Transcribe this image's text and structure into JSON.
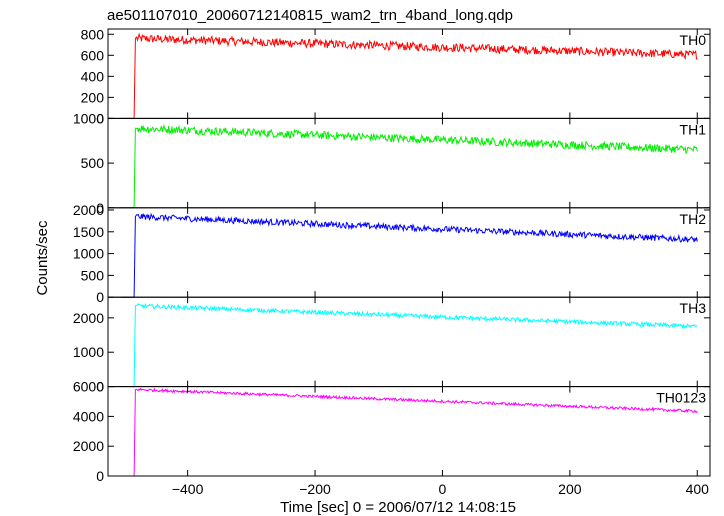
{
  "chart_data": {
    "type": "line",
    "title": "ae501107010_20060712140815_wam2_trn_4band_long.qdp",
    "xlabel": "Time [sec] 0 = 2006/07/12 14:08:15",
    "ylabel": "Counts/sec",
    "xlim": [
      -525,
      420
    ],
    "x_ticks": [
      -400,
      -200,
      0,
      200,
      400
    ],
    "x_tick_labels": [
      "−400",
      "−200",
      "0",
      "200",
      "400"
    ],
    "panels": [
      {
        "name": "TH0",
        "color": "#ff0000",
        "ylim": [
          0,
          850
        ],
        "y_ticks": [
          0,
          200,
          400,
          600,
          800
        ],
        "y_tick_labels": [
          "0",
          "200",
          "400",
          "600",
          "800"
        ],
        "pre_level": 0,
        "step_x": -478,
        "start_level": 760,
        "end_level": 605,
        "noise": 40,
        "x_end": 400
      },
      {
        "name": "TH1",
        "color": "#00ee00",
        "ylim": [
          0,
          1000
        ],
        "y_ticks": [
          0,
          500,
          1000
        ],
        "y_tick_labels": [
          "0",
          "500",
          "1000"
        ],
        "pre_level": 0,
        "step_x": -478,
        "start_level": 890,
        "end_level": 650,
        "noise": 45,
        "x_end": 400
      },
      {
        "name": "TH2",
        "color": "#0000ff",
        "ylim": [
          0,
          2050
        ],
        "y_ticks": [
          0,
          500,
          1000,
          1500,
          2000
        ],
        "y_tick_labels": [
          "0",
          "500",
          "1000",
          "1500",
          "2000"
        ],
        "pre_level": 0,
        "step_x": -478,
        "start_level": 1850,
        "end_level": 1320,
        "noise": 70,
        "x_end": 400
      },
      {
        "name": "TH3",
        "color": "#00ffff",
        "ylim": [
          0,
          2600
        ],
        "y_ticks": [
          0,
          1000,
          2000
        ],
        "y_tick_labels": [
          "0",
          "1000",
          "2000"
        ],
        "pre_level": 0,
        "step_x": -478,
        "start_level": 2350,
        "end_level": 1750,
        "noise": 60,
        "x_end": 400
      },
      {
        "name": "TH0123",
        "color": "#ff00ff",
        "ylim": [
          0,
          6000
        ],
        "y_ticks": [
          0,
          2000,
          4000,
          6000
        ],
        "y_tick_labels": [
          "0",
          "2000",
          "4000",
          "6000"
        ],
        "pre_level": 0,
        "step_x": -478,
        "start_level": 5800,
        "end_level": 4350,
        "noise": 90,
        "x_end": 400
      }
    ]
  }
}
